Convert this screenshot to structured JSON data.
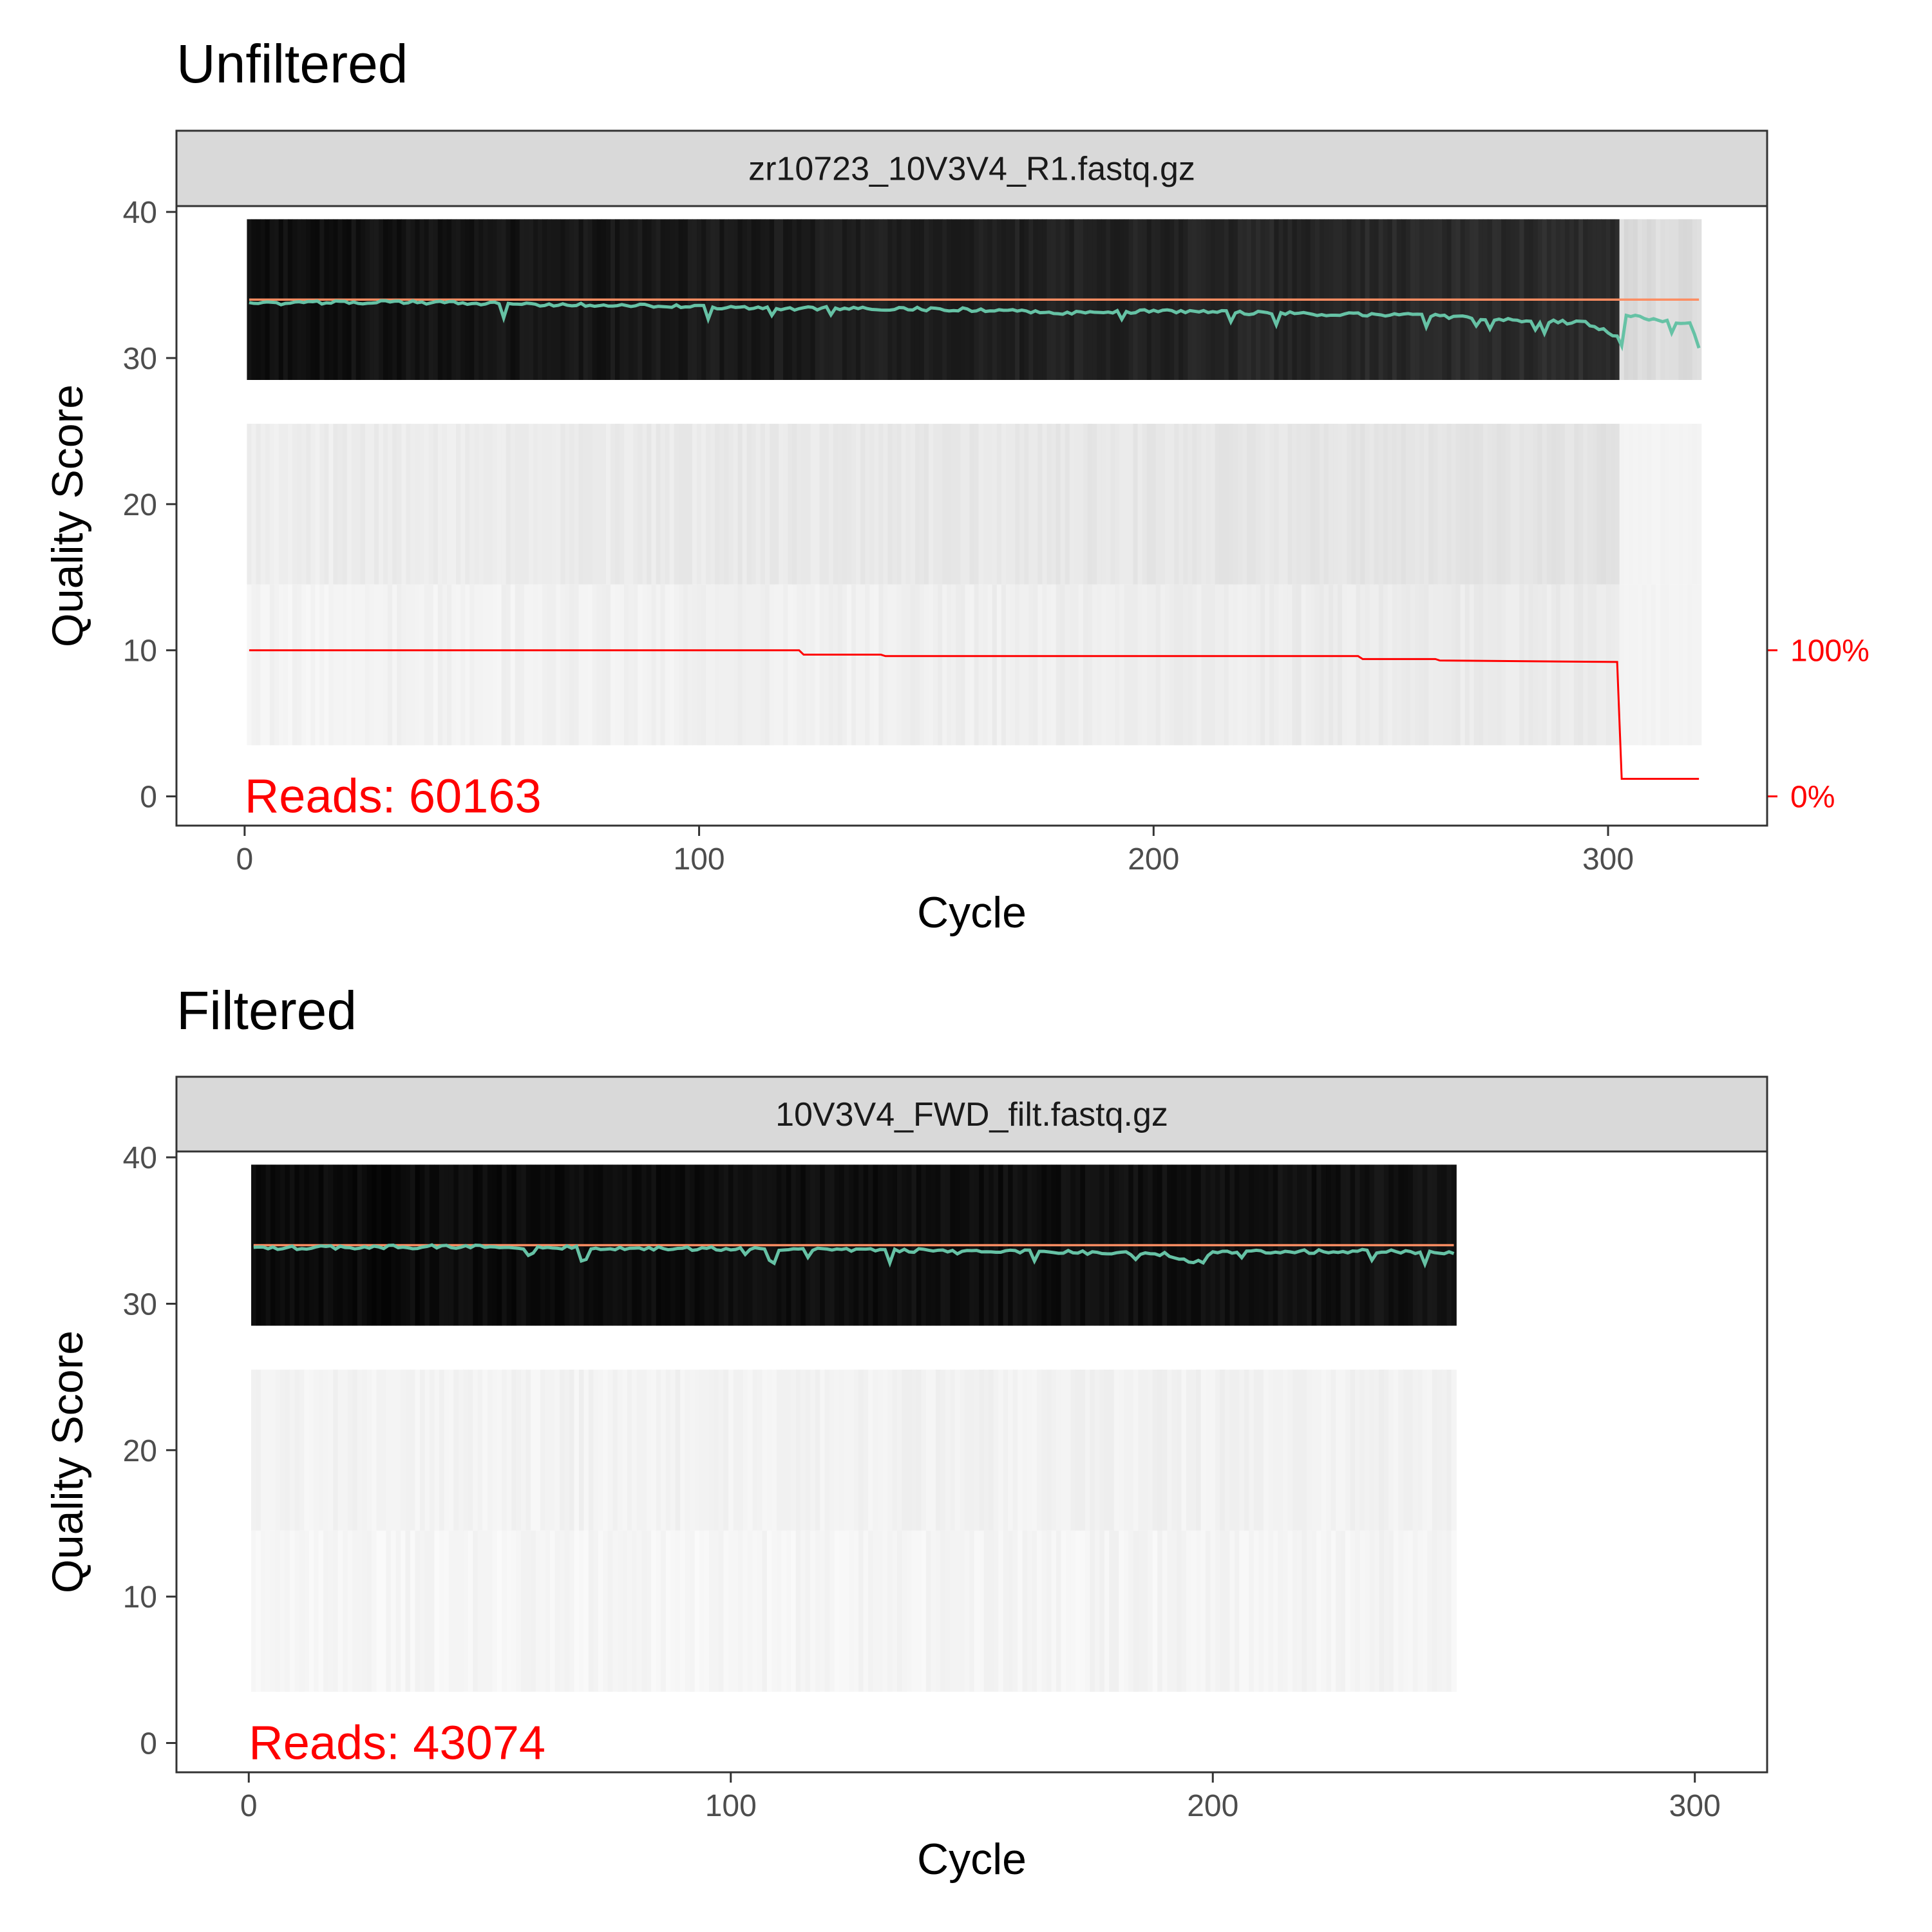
{
  "chart_data": [
    {
      "type": "heatmap",
      "title": "Unfiltered",
      "facet_label": "zr10723_10V3V4_R1.fastq.gz",
      "xlabel": "Cycle",
      "ylabel": "Quality Score",
      "xlim": [
        -15,
        335
      ],
      "ylim": [
        -2,
        40.4
      ],
      "x_ticks": [
        "0",
        "100",
        "200",
        "300"
      ],
      "y_ticks": [
        "0",
        "10",
        "20",
        "30",
        "40"
      ],
      "cycles": 320,
      "heatmap_bands": [
        {
          "q_low": 28.5,
          "q_high": 39.5,
          "base_gray": 0.06
        },
        {
          "q_low": 14.5,
          "q_high": 25.5,
          "base_gray": 0.93
        },
        {
          "q_low": 3.5,
          "q_high": 14.5,
          "base_gray": 0.955
        }
      ],
      "coverage_tail": {
        "from_cycle": 303,
        "gray": 0.86
      },
      "mean_quality": {
        "color": "#66C2A5",
        "points": [
          [
            1,
            33.7
          ],
          [
            20,
            33.8
          ],
          [
            40,
            33.8
          ],
          [
            60,
            33.7
          ],
          [
            80,
            33.6
          ],
          [
            100,
            33.5
          ],
          [
            120,
            33.4
          ],
          [
            140,
            33.4
          ],
          [
            160,
            33.3
          ],
          [
            180,
            33.1
          ],
          [
            200,
            33.2
          ],
          [
            220,
            33.1
          ],
          [
            240,
            33.0
          ],
          [
            260,
            32.9
          ],
          [
            280,
            32.6
          ],
          [
            295,
            32.4
          ],
          [
            302,
            31.5
          ],
          [
            303,
            30.8
          ],
          [
            304,
            32.9
          ],
          [
            310,
            32.6
          ],
          [
            318,
            32.4
          ],
          [
            320,
            30.7
          ]
        ]
      },
      "median_quality": {
        "color": "#FC8D62",
        "value": 34,
        "x_range": [
          1,
          320
        ]
      },
      "cumulative_reads": {
        "color": "#FF0000",
        "points": [
          [
            1,
            100
          ],
          [
            122,
            100
          ],
          [
            123,
            97
          ],
          [
            140,
            97
          ],
          [
            141,
            96
          ],
          [
            245,
            96
          ],
          [
            246,
            94
          ],
          [
            262,
            94
          ],
          [
            263,
            93
          ],
          [
            302,
            92
          ],
          [
            303,
            12
          ],
          [
            304,
            12
          ],
          [
            320,
            12
          ]
        ],
        "scale_ticks": [
          "100%",
          "0%"
        ]
      },
      "reads_label": "Reads:  60163"
    },
    {
      "type": "heatmap",
      "title": "Filtered",
      "facet_label": "10V3V4_FWD_filt.fastq.gz",
      "xlabel": "Cycle",
      "ylabel": "Quality Score",
      "xlim": [
        -15,
        315
      ],
      "ylim": [
        -2,
        40.4
      ],
      "x_ticks": [
        "0",
        "100",
        "200",
        "300"
      ],
      "y_ticks": [
        "0",
        "10",
        "20",
        "30",
        "40"
      ],
      "cycles": 250,
      "heatmap_bands": [
        {
          "q_low": 28.5,
          "q_high": 39.5,
          "base_gray": 0.04
        },
        {
          "q_low": 14.5,
          "q_high": 25.5,
          "base_gray": 0.955
        },
        {
          "q_low": 3.5,
          "q_high": 14.5,
          "base_gray": 0.965
        }
      ],
      "mean_quality": {
        "color": "#66C2A5",
        "points": [
          [
            1,
            33.8
          ],
          [
            40,
            33.9
          ],
          [
            80,
            33.8
          ],
          [
            120,
            33.7
          ],
          [
            150,
            33.6
          ],
          [
            175,
            33.5
          ],
          [
            190,
            33.4
          ],
          [
            196,
            32.8
          ],
          [
            200,
            33.5
          ],
          [
            230,
            33.6
          ],
          [
            250,
            33.5
          ]
        ]
      },
      "median_quality": {
        "color": "#FC8D62",
        "value": 34,
        "x_range": [
          1,
          250
        ]
      },
      "reads_label": "Reads:  43074"
    }
  ]
}
